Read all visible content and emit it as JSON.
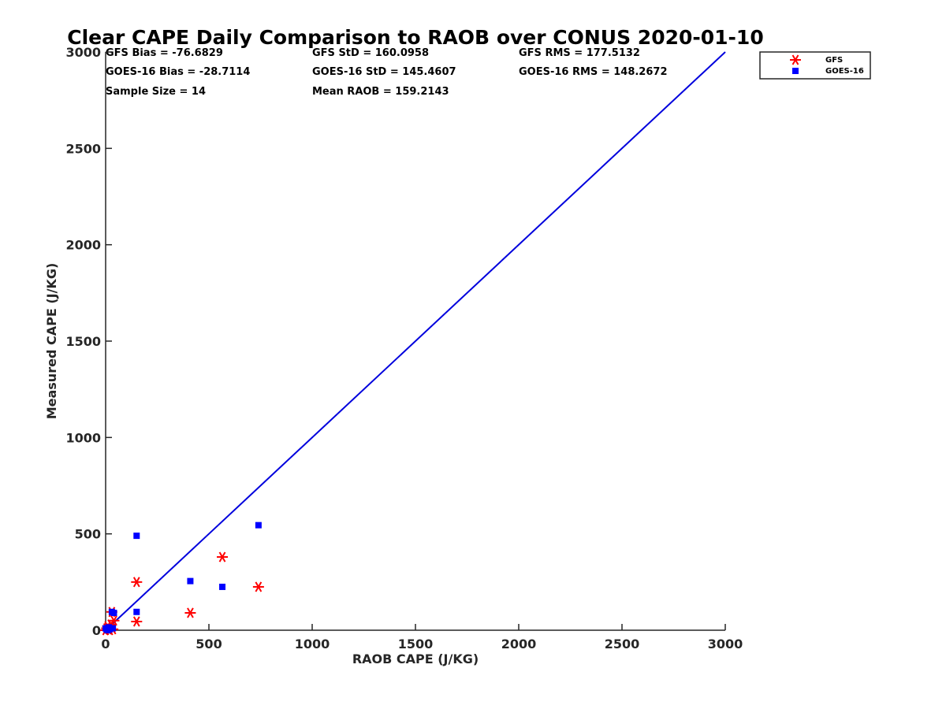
{
  "chart_data": {
    "type": "scatter",
    "title": "Clear CAPE Daily Comparison to RAOB over CONUS 2020-01-10",
    "xlabel": "RAOB CAPE (J/KG)",
    "ylabel": "Measured CAPE (J/KG)",
    "xlim": [
      0,
      3000
    ],
    "ylim": [
      0,
      3000
    ],
    "xticks": [
      "0",
      "500",
      "1000",
      "1500",
      "2000",
      "2500",
      "3000"
    ],
    "yticks": [
      "0",
      "500",
      "1000",
      "1500",
      "2000",
      "2500",
      "3000"
    ],
    "grid": false,
    "legend_position": "top-right outside",
    "stats": [
      "GFS Bias = -76.6829",
      "GFS StD = 160.0958",
      "GFS RMS = 177.5132",
      "GOES-16 Bias = -28.7114",
      "GOES-16 StD = 145.4607",
      "GOES-16 RMS = 148.2672",
      "Sample Size = 14",
      "Mean RAOB = 159.2143"
    ],
    "reference_line": {
      "x": [
        0,
        3000
      ],
      "y": [
        0,
        3000
      ],
      "color": "#0000dd"
    },
    "series": [
      {
        "name": "GFS",
        "marker": "asterisk",
        "color": "#ff0000",
        "points": [
          [
            0,
            0
          ],
          [
            5,
            10
          ],
          [
            10,
            20
          ],
          [
            15,
            5
          ],
          [
            20,
            0
          ],
          [
            25,
            30
          ],
          [
            30,
            95
          ],
          [
            35,
            5
          ],
          [
            40,
            50
          ],
          [
            150,
            45
          ],
          [
            150,
            250
          ],
          [
            410,
            90
          ],
          [
            565,
            380
          ],
          [
            740,
            225
          ]
        ]
      },
      {
        "name": "GOES-16",
        "marker": "square",
        "color": "#0000ff",
        "points": [
          [
            0,
            10
          ],
          [
            5,
            5
          ],
          [
            10,
            0
          ],
          [
            15,
            15
          ],
          [
            20,
            5
          ],
          [
            25,
            10
          ],
          [
            30,
            95
          ],
          [
            40,
            90
          ],
          [
            150,
            95
          ],
          [
            150,
            490
          ],
          [
            410,
            255
          ],
          [
            565,
            225
          ],
          [
            740,
            545
          ],
          [
            35,
            10
          ]
        ]
      }
    ]
  }
}
